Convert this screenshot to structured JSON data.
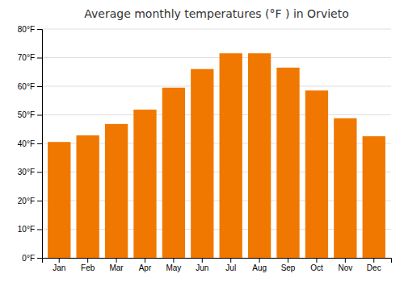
{
  "chart_data": {
    "type": "bar",
    "title": "Average monthly temperatures (°F ) in Orvieto",
    "categories": [
      "Jan",
      "Feb",
      "Mar",
      "Apr",
      "May",
      "Jun",
      "Jul",
      "Aug",
      "Sep",
      "Oct",
      "Nov",
      "Dec"
    ],
    "values": [
      40.5,
      42.8,
      46.8,
      51.8,
      59.5,
      66.0,
      71.5,
      71.5,
      66.5,
      58.5,
      48.8,
      42.5
    ],
    "color": "#F07800",
    "ylim": [
      0,
      80
    ],
    "yticks": [
      {
        "value": 0,
        "label": "0°F"
      },
      {
        "value": 10,
        "label": "10°F"
      },
      {
        "value": 20,
        "label": "20°F"
      },
      {
        "value": 30,
        "label": "30°F"
      },
      {
        "value": 40,
        "label": "40°F"
      },
      {
        "value": 50,
        "label": "50°F"
      },
      {
        "value": 60,
        "label": "60°F"
      },
      {
        "value": 70,
        "label": "70°F"
      },
      {
        "value": 80,
        "label": "80°F"
      }
    ],
    "grid": true
  }
}
